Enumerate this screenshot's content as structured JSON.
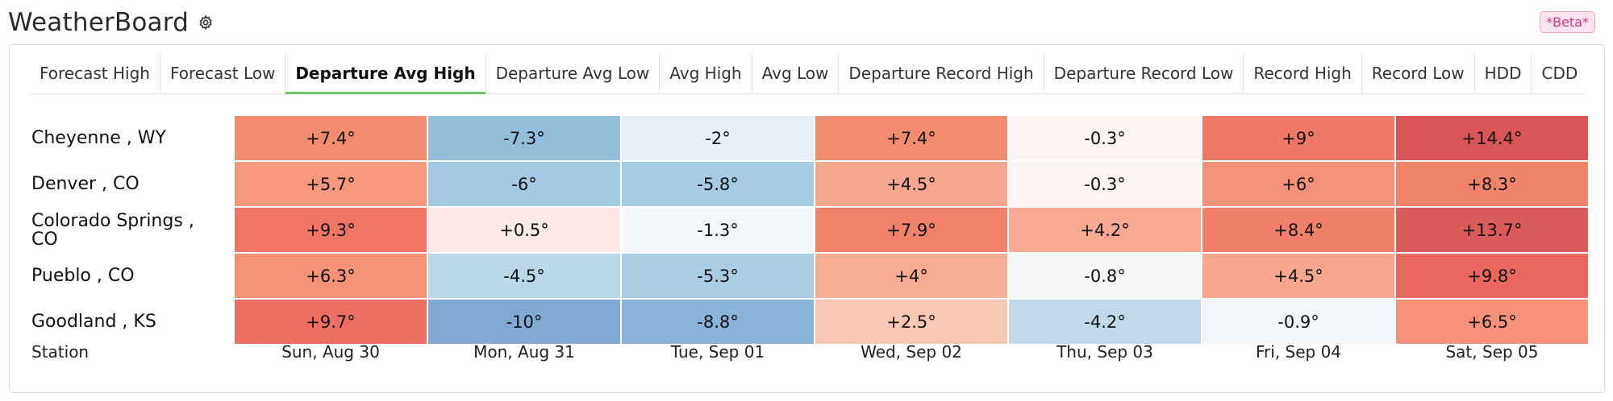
{
  "app": {
    "title": "WeatherBoard",
    "settings_icon": "gear-icon",
    "badge": "*Beta*"
  },
  "tabs": [
    {
      "label": "Forecast High",
      "active": false
    },
    {
      "label": "Forecast Low",
      "active": false
    },
    {
      "label": "Departure Avg High",
      "active": true
    },
    {
      "label": "Departure Avg Low",
      "active": false
    },
    {
      "label": "Avg High",
      "active": false
    },
    {
      "label": "Avg Low",
      "active": false
    },
    {
      "label": "Departure Record High",
      "active": false
    },
    {
      "label": "Departure Record Low",
      "active": false
    },
    {
      "label": "Record High",
      "active": false
    },
    {
      "label": "Record Low",
      "active": false
    },
    {
      "label": "HDD",
      "active": false
    },
    {
      "label": "CDD",
      "active": false
    }
  ],
  "table": {
    "station_header": "Station",
    "days": [
      "Sun, Aug 30",
      "Mon, Aug 31",
      "Tue, Sep 01",
      "Wed, Sep 02",
      "Thu, Sep 03",
      "Fri, Sep 04",
      "Sat, Sep 05"
    ],
    "rows": [
      {
        "station": "Cheyenne , WY",
        "values": [
          "+7.4°",
          "-7.3°",
          "-2°",
          "+7.4°",
          "-0.3°",
          "+9°",
          "+14.4°"
        ],
        "colors": [
          "#f28c6e",
          "#92bedc",
          "#e7f0f8",
          "#f28c6e",
          "#fdf6f5",
          "#ef7965",
          "#d95558"
        ]
      },
      {
        "station": "Denver , CO",
        "values": [
          "+5.7°",
          "-6°",
          "-5.8°",
          "+4.5°",
          "-0.3°",
          "+6°",
          "+8.3°"
        ],
        "colors": [
          "#f5987b",
          "#a4c9e2",
          "#a7cbe2",
          "#f7a78c",
          "#fdf6f5",
          "#f49279",
          "#f08469"
        ]
      },
      {
        "station": "Colorado Springs , CO",
        "values": [
          "+9.3°",
          "+0.5°",
          "-1.3°",
          "+7.9°",
          "+4.2°",
          "+8.4°",
          "+13.7°"
        ],
        "colors": [
          "#ef7663",
          "#fde9e6",
          "#f3f6fa",
          "#f1826a",
          "#f7aa91",
          "#f08068",
          "#db5a5a"
        ]
      },
      {
        "station": "Pueblo , CO",
        "values": [
          "+6.3°",
          "-4.5°",
          "-5.3°",
          "+4°",
          "-0.8°",
          "+4.5°",
          "+9.8°"
        ],
        "colors": [
          "#f49275",
          "#bcd8e8",
          "#abcde3",
          "#f8ad93",
          "#f5f8f6",
          "#f7a78c",
          "#e9675d"
        ]
      },
      {
        "station": "Goodland , KS",
        "values": [
          "+9.7°",
          "-10°",
          "-8.8°",
          "+2.5°",
          "-4.2°",
          "-0.9°",
          "+6.5°"
        ],
        "colors": [
          "#ec6f61",
          "#80aad3",
          "#89b3d8",
          "#fbc7b5",
          "#c2d9ea",
          "#f4f7fa",
          "#f49178"
        ]
      }
    ]
  }
}
